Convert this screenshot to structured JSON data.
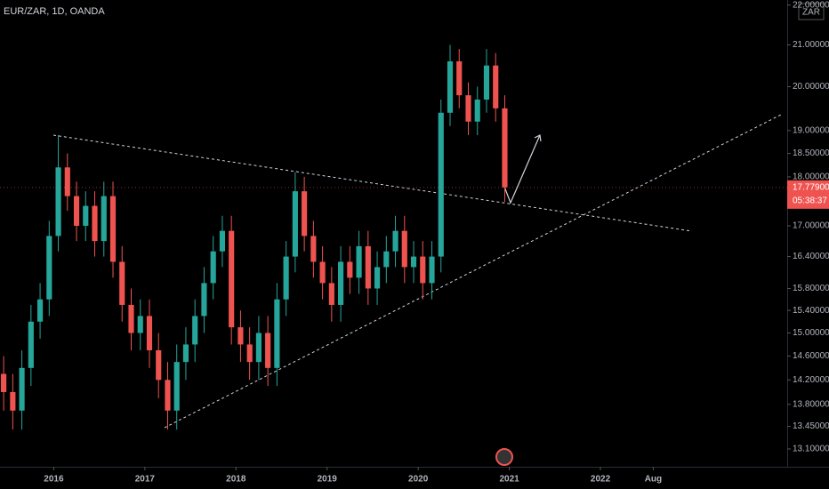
{
  "chart_data": {
    "type": "candlestick",
    "title": "EUR/ZAR, 1D, OANDA",
    "currency": "ZAR",
    "log_scale": true,
    "up_color": "#26a69a",
    "down_color": "#ef5350",
    "x": [
      2015.45,
      2015.55,
      2015.65,
      2015.75,
      2015.85,
      2015.95,
      2016.05,
      2016.15,
      2016.25,
      2016.35,
      2016.45,
      2016.55,
      2016.65,
      2016.75,
      2016.85,
      2016.95,
      2017.05,
      2017.15,
      2017.25,
      2017.35,
      2017.45,
      2017.55,
      2017.65,
      2017.75,
      2017.85,
      2017.95,
      2018.05,
      2018.15,
      2018.25,
      2018.35,
      2018.45,
      2018.55,
      2018.65,
      2018.75,
      2018.85,
      2018.95,
      2019.05,
      2019.15,
      2019.25,
      2019.35,
      2019.45,
      2019.55,
      2019.65,
      2019.75,
      2019.85,
      2019.95,
      2020.05,
      2020.15,
      2020.25,
      2020.35,
      2020.45,
      2020.55,
      2020.65,
      2020.75,
      2020.85,
      2020.95
    ],
    "open": [
      14.3,
      14.0,
      13.7,
      14.4,
      15.2,
      15.6,
      16.8,
      18.2,
      17.6,
      17.0,
      17.4,
      16.7,
      17.6,
      16.3,
      15.5,
      15.0,
      15.3,
      14.7,
      14.2,
      13.7,
      14.5,
      14.8,
      15.3,
      15.9,
      16.5,
      16.9,
      15.1,
      14.8,
      14.5,
      15.0,
      14.4,
      15.6,
      16.4,
      17.7,
      16.8,
      16.3,
      15.9,
      15.5,
      16.3,
      16.0,
      16.6,
      15.8,
      16.2,
      16.5,
      16.9,
      16.2,
      16.4,
      15.9,
      16.4,
      19.4,
      20.6,
      19.8,
      19.2,
      19.7,
      20.5,
      19.5
    ],
    "high": [
      14.6,
      14.3,
      14.7,
      15.5,
      15.9,
      17.1,
      18.9,
      18.5,
      17.9,
      17.7,
      17.7,
      17.9,
      17.9,
      16.6,
      15.8,
      15.6,
      15.6,
      15.0,
      14.5,
      14.8,
      15.1,
      15.6,
      16.2,
      16.8,
      17.2,
      17.2,
      15.4,
      15.1,
      15.3,
      15.3,
      15.9,
      16.7,
      18.1,
      18.0,
      17.1,
      16.6,
      16.2,
      16.6,
      16.6,
      16.9,
      16.9,
      16.5,
      16.8,
      17.2,
      17.2,
      16.7,
      16.7,
      16.7,
      19.7,
      21.0,
      20.9,
      20.1,
      20.0,
      20.9,
      20.8,
      19.8
    ],
    "low": [
      13.7,
      13.4,
      13.4,
      14.1,
      14.9,
      15.3,
      16.5,
      17.3,
      16.7,
      16.7,
      16.4,
      16.4,
      16.0,
      15.2,
      14.7,
      14.7,
      14.4,
      13.9,
      13.4,
      13.4,
      14.2,
      14.5,
      15.0,
      15.6,
      16.2,
      14.8,
      14.5,
      14.2,
      14.2,
      14.1,
      14.1,
      15.3,
      16.1,
      16.5,
      16.0,
      15.6,
      15.2,
      15.2,
      15.7,
      15.7,
      15.5,
      15.5,
      15.9,
      16.2,
      15.9,
      15.9,
      15.6,
      15.6,
      16.1,
      19.1,
      19.5,
      18.9,
      18.9,
      19.4,
      19.2,
      17.48
    ],
    "close": [
      14.0,
      13.7,
      14.4,
      15.2,
      15.6,
      16.8,
      18.2,
      17.6,
      17.0,
      17.4,
      16.7,
      17.6,
      16.3,
      15.5,
      15.0,
      15.3,
      14.7,
      14.2,
      13.7,
      14.5,
      14.8,
      15.3,
      15.9,
      16.5,
      16.9,
      15.1,
      14.8,
      14.5,
      15.0,
      14.4,
      15.6,
      16.4,
      17.7,
      16.8,
      16.3,
      15.9,
      15.5,
      16.3,
      16.0,
      16.6,
      15.8,
      16.2,
      16.5,
      16.9,
      16.2,
      16.4,
      15.9,
      16.4,
      19.4,
      20.6,
      19.8,
      19.2,
      19.7,
      20.5,
      19.5,
      17.78
    ],
    "xlim": [
      2015.41,
      2024.05
    ],
    "xticks": [
      2016,
      2017,
      2018,
      2019,
      2020,
      2021,
      2022,
      {
        "value": 2022.58,
        "label": "Aug"
      }
    ],
    "ylim": [
      12.83,
      22.13
    ],
    "yticks": [
      {
        "value": 13.1,
        "label": "13.10000"
      },
      {
        "value": 13.45,
        "label": "13.45000"
      },
      {
        "value": 13.8,
        "label": "13.80000"
      },
      {
        "value": 14.2,
        "label": "14.20000"
      },
      {
        "value": 14.6,
        "label": "14.60000"
      },
      {
        "value": 15,
        "label": "15.00000"
      },
      {
        "value": 15.4,
        "label": "15.40000"
      },
      {
        "value": 15.8,
        "label": "15.80000"
      },
      {
        "value": 16.4,
        "label": "16.40000"
      },
      {
        "value": 17,
        "label": "17.00000"
      },
      {
        "value": 18,
        "label": "18.00000"
      },
      {
        "value": 18.5,
        "label": "18.50000"
      },
      {
        "value": 19,
        "label": "19.00000"
      },
      {
        "value": 20,
        "label": "20.00000"
      },
      {
        "value": 21,
        "label": "21.00000"
      },
      {
        "value": 22,
        "label": "22.00000"
      }
    ],
    "last_price": {
      "value": 17.779,
      "label": "17.77900"
    },
    "countdown": "05:38:37"
  }
}
